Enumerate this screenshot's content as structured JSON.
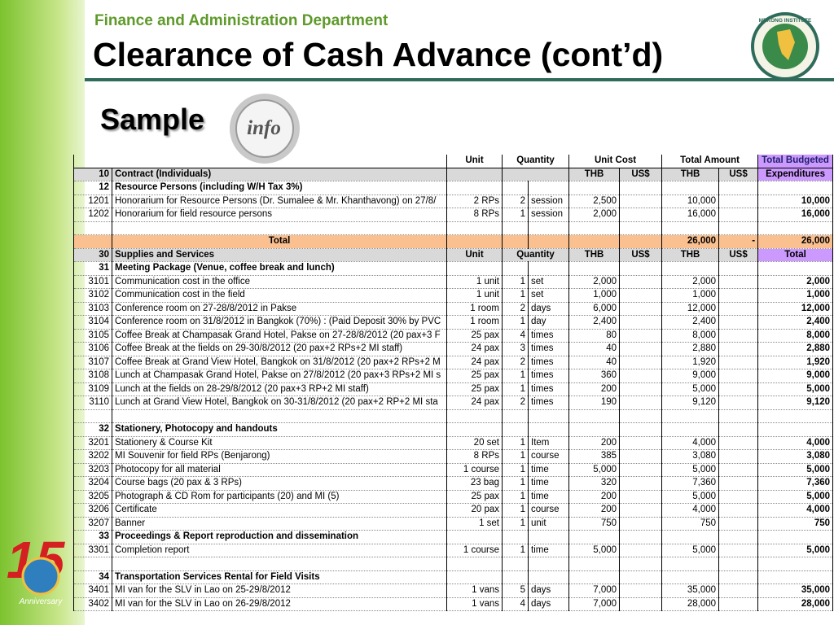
{
  "header": {
    "department": "Finance and Administration Department",
    "title": "Clearance of Cash Advance (cont’d)",
    "logo_text": "MEKONG INSTITUTE"
  },
  "sample": {
    "label": "Sample",
    "icon_text": "info"
  },
  "anniversary": {
    "number": "15",
    "label": "Anniversary"
  },
  "table": {
    "head": {
      "unit": "Unit",
      "quantity": "Quantity",
      "unit_cost": "Unit Cost",
      "total_amount": "Total Amount",
      "total_budgeted": "Total Budgeted"
    },
    "rows": [
      [
        "10",
        "Contract (Individuals)",
        null,
        null,
        null,
        "THB",
        "US$",
        "THB",
        "US$",
        "Expenditures"
      ],
      [
        "12",
        "Resource Persons (including W/H Tax 3%)"
      ],
      [
        "1201",
        "Honorarium for Resource Persons (Dr. Sumalee & Mr. Khanthavong) on 27/8/",
        "2 RPs",
        "2",
        "session",
        "2,500",
        null,
        "10,000",
        null,
        "10,000"
      ],
      [
        "1202",
        "Honorarium for field resource persons",
        "8 RPs",
        "1",
        "session",
        "2,000",
        null,
        "16,000",
        null,
        "16,000"
      ],
      null,
      [
        null,
        "Total",
        null,
        null,
        null,
        null,
        null,
        "26,000",
        "-",
        "26,000"
      ],
      [
        "30",
        "Supplies and Services",
        "Unit",
        "Quantity",
        null,
        "THB",
        "US$",
        "THB",
        "US$",
        "Total"
      ],
      [
        "31",
        "Meeting Package (Venue, coffee break and lunch)"
      ],
      [
        "3101",
        "Communication cost in the office",
        "1 unit",
        "1",
        "set",
        "2,000",
        null,
        "2,000",
        null,
        "2,000"
      ],
      [
        "3102",
        "Communication cost in the field",
        "1 unit",
        "1",
        "set",
        "1,000",
        null,
        "1,000",
        null,
        "1,000"
      ],
      [
        "3103",
        "Conference room on 27-28/8/2012 in Pakse",
        "1 room",
        "2",
        "days",
        "6,000",
        null,
        "12,000",
        null,
        "12,000"
      ],
      [
        "3104",
        "Conference room on 31/8/2012 in Bangkok (70%) : (Paid Deposit 30% by PVC",
        "1 room",
        "1",
        "day",
        "2,400",
        null,
        "2,400",
        null,
        "2,400"
      ],
      [
        "3105",
        "Coffee Break at Champasak Grand Hotel, Pakse on 27-28/8/2012 (20 pax+3 F",
        "25 pax",
        "4",
        "times",
        "80",
        null,
        "8,000",
        null,
        "8,000"
      ],
      [
        "3106",
        "Coffee Break at the fields on 29-30/8/2012 (20 pax+2 RPs+2 MI staff)",
        "24 pax",
        "3",
        "times",
        "40",
        null,
        "2,880",
        null,
        "2,880"
      ],
      [
        "3107",
        "Coffee Break at Grand View Hotel, Bangkok on 31/8/2012 (20 pax+2 RPs+2 M",
        "24 pax",
        "2",
        "times",
        "40",
        null,
        "1,920",
        null,
        "1,920"
      ],
      [
        "3108",
        "Lunch at Champasak Grand Hotel, Pakse on 27/8/2012 (20 pax+3 RPs+2 MI s",
        "25 pax",
        "1",
        "times",
        "360",
        null,
        "9,000",
        null,
        "9,000"
      ],
      [
        "3109",
        "Lunch at the fields on 28-29/8/2012 (20 pax+3 RP+2 MI staff)",
        "25 pax",
        "1",
        "times",
        "200",
        null,
        "5,000",
        null,
        "5,000"
      ],
      [
        "3110",
        "Lunch at Grand View Hotel, Bangkok on 30-31/8/2012 (20 pax+2 RP+2 MI sta",
        "24 pax",
        "2",
        "times",
        "190",
        null,
        "9,120",
        null,
        "9,120"
      ],
      null,
      [
        "32",
        "Stationery, Photocopy and handouts"
      ],
      [
        "3201",
        "Stationery & Course Kit",
        "20 set",
        "1",
        "Item",
        "200",
        null,
        "4,000",
        null,
        "4,000"
      ],
      [
        "3202",
        "MI Souvenir for field RPs (Benjarong)",
        "8 RPs",
        "1",
        "course",
        "385",
        null,
        "3,080",
        null,
        "3,080"
      ],
      [
        "3203",
        "Photocopy for all material",
        "1 course",
        "1",
        "time",
        "5,000",
        null,
        "5,000",
        null,
        "5,000"
      ],
      [
        "3204",
        "Course bags (20 pax & 3 RPs)",
        "23 bag",
        "1",
        "time",
        "320",
        null,
        "7,360",
        null,
        "7,360"
      ],
      [
        "3205",
        "Photograph & CD Rom for participants (20) and MI (5)",
        "25 pax",
        "1",
        "time",
        "200",
        null,
        "5,000",
        null,
        "5,000"
      ],
      [
        "3206",
        "Certificate",
        "20 pax",
        "1",
        "course",
        "200",
        null,
        "4,000",
        null,
        "4,000"
      ],
      [
        "3207",
        "Banner",
        "1 set",
        "1",
        "unit",
        "750",
        null,
        "750",
        null,
        "750"
      ],
      [
        "33",
        "Proceedings & Report reproduction and dissemination"
      ],
      [
        "3301",
        "Completion report",
        "1 course",
        "1",
        "time",
        "5,000",
        null,
        "5,000",
        null,
        "5,000"
      ],
      null,
      [
        "34",
        "Transportation Services Rental for Field Visits"
      ],
      [
        "3401",
        "MI van for the SLV in Lao on 25-29/8/2012",
        "1 vans",
        "5",
        "days",
        "7,000",
        null,
        "35,000",
        null,
        "35,000"
      ],
      [
        "3402",
        "MI van for the SLV in Lao on 26-29/8/2012",
        "1 vans",
        "4",
        "days",
        "7,000",
        null,
        "28,000",
        null,
        "28,000"
      ]
    ]
  }
}
